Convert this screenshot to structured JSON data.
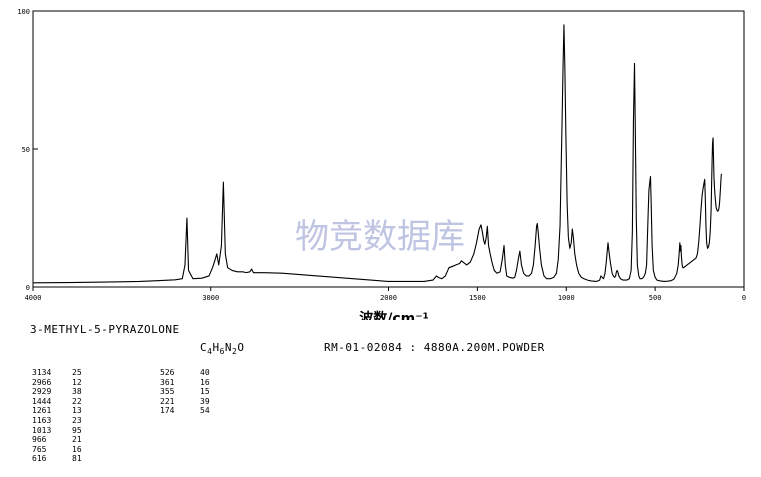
{
  "chart_data": {
    "type": "line",
    "x_range": [
      4000,
      0
    ],
    "y_range": [
      0,
      100
    ],
    "xlabel": "波数/cm⁻¹",
    "x_ticks": [
      4000,
      3000,
      2000,
      1500,
      1000,
      500,
      0
    ],
    "x_tick_labels": [
      "4000",
      "3000",
      "2000",
      "1500",
      "1000",
      "500",
      "0"
    ],
    "y_ticks": [
      0,
      50,
      100
    ],
    "y_tick_labels": [
      "0",
      "50",
      "100"
    ],
    "grid": false,
    "watermark": "物竞数据库",
    "series": [
      {
        "points": [
          [
            4000,
            1.5
          ],
          [
            3800,
            1.6
          ],
          [
            3600,
            1.8
          ],
          [
            3400,
            2.0
          ],
          [
            3300,
            2.3
          ],
          [
            3200,
            2.6
          ],
          [
            3160,
            3.0
          ],
          [
            3145,
            8
          ],
          [
            3134,
            25
          ],
          [
            3125,
            6
          ],
          [
            3100,
            3.0
          ],
          [
            3050,
            3.2
          ],
          [
            3010,
            4.0
          ],
          [
            2990,
            7
          ],
          [
            2975,
            10
          ],
          [
            2966,
            12
          ],
          [
            2955,
            8
          ],
          [
            2940,
            15
          ],
          [
            2929,
            38
          ],
          [
            2918,
            12
          ],
          [
            2905,
            7
          ],
          [
            2880,
            6
          ],
          [
            2850,
            5.5
          ],
          [
            2820,
            5.5
          ],
          [
            2800,
            5.2
          ],
          [
            2780,
            5.5
          ],
          [
            2770,
            6.5
          ],
          [
            2760,
            5.2
          ],
          [
            2700,
            5.2
          ],
          [
            2600,
            5.0
          ],
          [
            2500,
            4.5
          ],
          [
            2400,
            4.0
          ],
          [
            2300,
            3.5
          ],
          [
            2200,
            3.0
          ],
          [
            2100,
            2.5
          ],
          [
            2000,
            2.0
          ],
          [
            1900,
            2.0
          ],
          [
            1800,
            2.0
          ],
          [
            1750,
            2.5
          ],
          [
            1730,
            4.0
          ],
          [
            1720,
            3.5
          ],
          [
            1700,
            3.0
          ],
          [
            1680,
            4.0
          ],
          [
            1660,
            7
          ],
          [
            1640,
            7.5
          ],
          [
            1620,
            8
          ],
          [
            1600,
            8.5
          ],
          [
            1590,
            9.5
          ],
          [
            1580,
            9
          ],
          [
            1560,
            8
          ],
          [
            1540,
            9
          ],
          [
            1520,
            12
          ],
          [
            1505,
            16
          ],
          [
            1490,
            21
          ],
          [
            1480,
            22.5
          ],
          [
            1472,
            20
          ],
          [
            1465,
            17
          ],
          [
            1458,
            15.5
          ],
          [
            1450,
            18
          ],
          [
            1444,
            22
          ],
          [
            1437,
            15
          ],
          [
            1428,
            12
          ],
          [
            1418,
            9
          ],
          [
            1405,
            6
          ],
          [
            1390,
            5
          ],
          [
            1372,
            5.5
          ],
          [
            1360,
            10
          ],
          [
            1350,
            15
          ],
          [
            1343,
            8
          ],
          [
            1335,
            4
          ],
          [
            1320,
            3.5
          ],
          [
            1300,
            3.2
          ],
          [
            1290,
            3.5
          ],
          [
            1280,
            6
          ],
          [
            1270,
            10
          ],
          [
            1261,
            13
          ],
          [
            1252,
            8
          ],
          [
            1240,
            5
          ],
          [
            1225,
            4
          ],
          [
            1210,
            4
          ],
          [
            1195,
            5
          ],
          [
            1185,
            8
          ],
          [
            1175,
            15
          ],
          [
            1167,
            22
          ],
          [
            1163,
            23
          ],
          [
            1158,
            20
          ],
          [
            1150,
            14
          ],
          [
            1140,
            8
          ],
          [
            1125,
            4
          ],
          [
            1110,
            3
          ],
          [
            1090,
            3
          ],
          [
            1070,
            3.5
          ],
          [
            1055,
            5
          ],
          [
            1045,
            10
          ],
          [
            1035,
            22
          ],
          [
            1025,
            55
          ],
          [
            1018,
            80
          ],
          [
            1013,
            95
          ],
          [
            1008,
            80
          ],
          [
            1002,
            55
          ],
          [
            995,
            30
          ],
          [
            988,
            18
          ],
          [
            980,
            14
          ],
          [
            972,
            16
          ],
          [
            966,
            21
          ],
          [
            960,
            18
          ],
          [
            952,
            12
          ],
          [
            942,
            8
          ],
          [
            930,
            5
          ],
          [
            915,
            3.5
          ],
          [
            900,
            3
          ],
          [
            880,
            2.5
          ],
          [
            860,
            2.2
          ],
          [
            830,
            2.0
          ],
          [
            812,
            2.5
          ],
          [
            805,
            4
          ],
          [
            798,
            3.5
          ],
          [
            790,
            3
          ],
          [
            782,
            5
          ],
          [
            775,
            9
          ],
          [
            768,
            14
          ],
          [
            765,
            16
          ],
          [
            760,
            13
          ],
          [
            752,
            9
          ],
          [
            742,
            5
          ],
          [
            735,
            4
          ],
          [
            728,
            3.5
          ],
          [
            722,
            4
          ],
          [
            718,
            5.5
          ],
          [
            714,
            6
          ],
          [
            710,
            5.5
          ],
          [
            704,
            4
          ],
          [
            695,
            3
          ],
          [
            680,
            2.5
          ],
          [
            660,
            2.5
          ],
          [
            645,
            3
          ],
          [
            635,
            6
          ],
          [
            628,
            20
          ],
          [
            622,
            60
          ],
          [
            616,
            81
          ],
          [
            612,
            60
          ],
          [
            606,
            25
          ],
          [
            600,
            8
          ],
          [
            592,
            4
          ],
          [
            585,
            3
          ],
          [
            575,
            3
          ],
          [
            565,
            3.5
          ],
          [
            555,
            5
          ],
          [
            548,
            8
          ],
          [
            540,
            25
          ],
          [
            535,
            35
          ],
          [
            530,
            38
          ],
          [
            526,
            40
          ],
          [
            522,
            30
          ],
          [
            517,
            15
          ],
          [
            510,
            6
          ],
          [
            500,
            3.5
          ],
          [
            490,
            2.5
          ],
          [
            470,
            2.2
          ],
          [
            450,
            2.0
          ],
          [
            430,
            2.1
          ],
          [
            410,
            2.3
          ],
          [
            395,
            2.8
          ],
          [
            385,
            4
          ],
          [
            378,
            5
          ],
          [
            370,
            8
          ],
          [
            365,
            12
          ],
          [
            361,
            16
          ],
          [
            358,
            13
          ],
          [
            355,
            15
          ],
          [
            352,
            11
          ],
          [
            348,
            8
          ],
          [
            344,
            7
          ],
          [
            340,
            7
          ],
          [
            330,
            7.5
          ],
          [
            320,
            8
          ],
          [
            310,
            8.5
          ],
          [
            300,
            9
          ],
          [
            290,
            9.5
          ],
          [
            280,
            10
          ],
          [
            270,
            10.5
          ],
          [
            262,
            12
          ],
          [
            255,
            16
          ],
          [
            248,
            22
          ],
          [
            242,
            28
          ],
          [
            236,
            33
          ],
          [
            232,
            35
          ],
          [
            228,
            36.5
          ],
          [
            224,
            38
          ],
          [
            221,
            39
          ],
          [
            218,
            33
          ],
          [
            214,
            22
          ],
          [
            210,
            16
          ],
          [
            205,
            14
          ],
          [
            200,
            14.5
          ],
          [
            195,
            16
          ],
          [
            190,
            20
          ],
          [
            185,
            28
          ],
          [
            182,
            38
          ],
          [
            179,
            47
          ],
          [
            177,
            52
          ],
          [
            175,
            53.5
          ],
          [
            174,
            54
          ],
          [
            172,
            48
          ],
          [
            169,
            40
          ],
          [
            166,
            36
          ],
          [
            163,
            33
          ],
          [
            160,
            31
          ],
          [
            157,
            29
          ],
          [
            153,
            28
          ],
          [
            150,
            27.5
          ],
          [
            146,
            27.5
          ],
          [
            143,
            28
          ],
          [
            140,
            29
          ],
          [
            137,
            31
          ],
          [
            135,
            33
          ],
          [
            133,
            35
          ],
          [
            131,
            37.5
          ],
          [
            129,
            39.5
          ],
          [
            127,
            41
          ]
        ]
      }
    ]
  },
  "compound_name": "3-METHYL-5-PYRAZOLONE",
  "formula": {
    "c": "C",
    "c_n": "4",
    "h": "H",
    "h_n": "6",
    "n": "N",
    "n_n": "2",
    "o": "O"
  },
  "sample_info": "RM-01-02084 : 4880A.200M.POWDER",
  "peak_table_left": [
    {
      "wavenumber": "3134",
      "intensity": "25"
    },
    {
      "wavenumber": "2966",
      "intensity": "12"
    },
    {
      "wavenumber": "2929",
      "intensity": "38"
    },
    {
      "wavenumber": "1444",
      "intensity": "22"
    },
    {
      "wavenumber": "1261",
      "intensity": "13"
    },
    {
      "wavenumber": "1163",
      "intensity": "23"
    },
    {
      "wavenumber": "1013",
      "intensity": "95"
    },
    {
      "wavenumber": "966",
      "intensity": "21"
    },
    {
      "wavenumber": "765",
      "intensity": "16"
    },
    {
      "wavenumber": "616",
      "intensity": "81"
    }
  ],
  "peak_table_right": [
    {
      "wavenumber": "526",
      "intensity": "40"
    },
    {
      "wavenumber": "361",
      "intensity": "16"
    },
    {
      "wavenumber": "355",
      "intensity": "15"
    },
    {
      "wavenumber": "221",
      "intensity": "39"
    },
    {
      "wavenumber": "174",
      "intensity": "54"
    }
  ]
}
